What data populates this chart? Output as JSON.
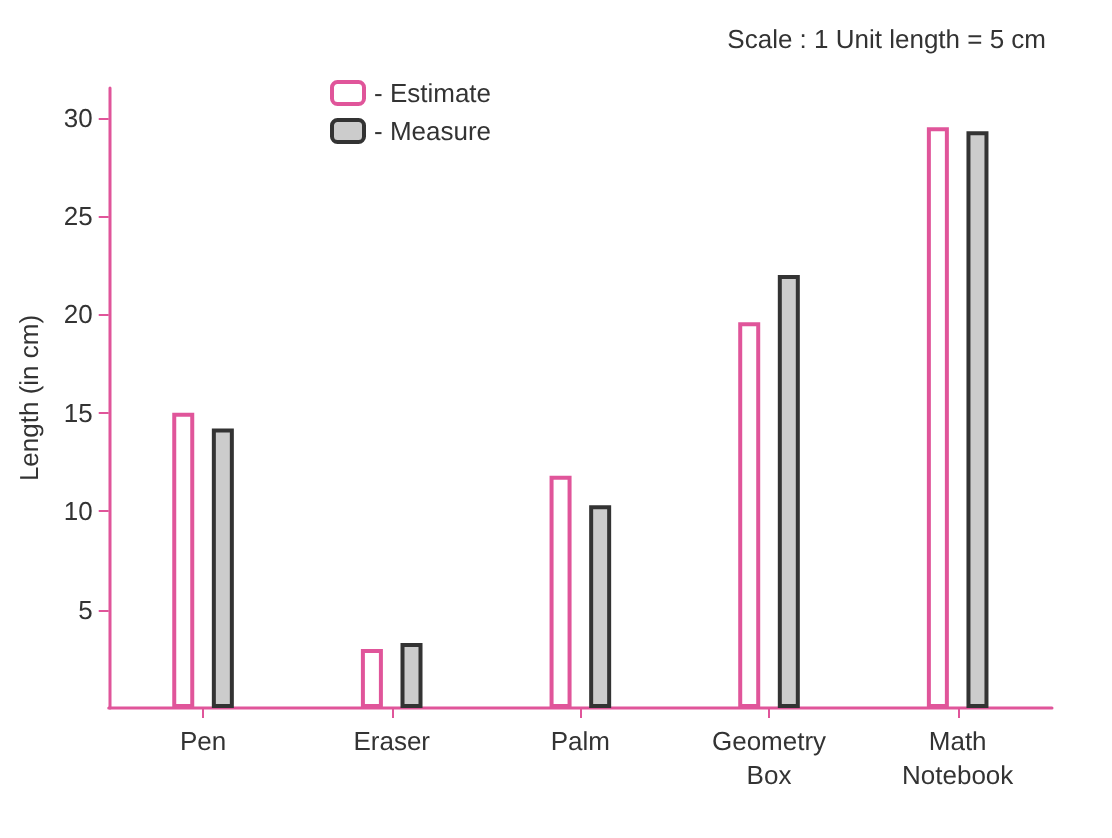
{
  "chart_data": {
    "type": "bar",
    "categories": [
      "Pen",
      "Eraser",
      "Palm",
      "Geometry Box",
      "Math Notebook"
    ],
    "series": [
      {
        "name": "- Estimate",
        "color": "#e0559a",
        "values": [
          15,
          3,
          11.8,
          19.6,
          29.5
        ]
      },
      {
        "name": "- Measure",
        "color": "#333333",
        "values": [
          14.2,
          3.3,
          10.3,
          22,
          29.3
        ]
      }
    ],
    "ylabel": "Length (in cm)",
    "ylim": [
      0,
      31.5
    ],
    "yticks": [
      5,
      10,
      15,
      20,
      25,
      30
    ],
    "annotations": [
      "Scale : 1 Unit length = 5 cm"
    ],
    "grid": false,
    "legend": "top left"
  }
}
